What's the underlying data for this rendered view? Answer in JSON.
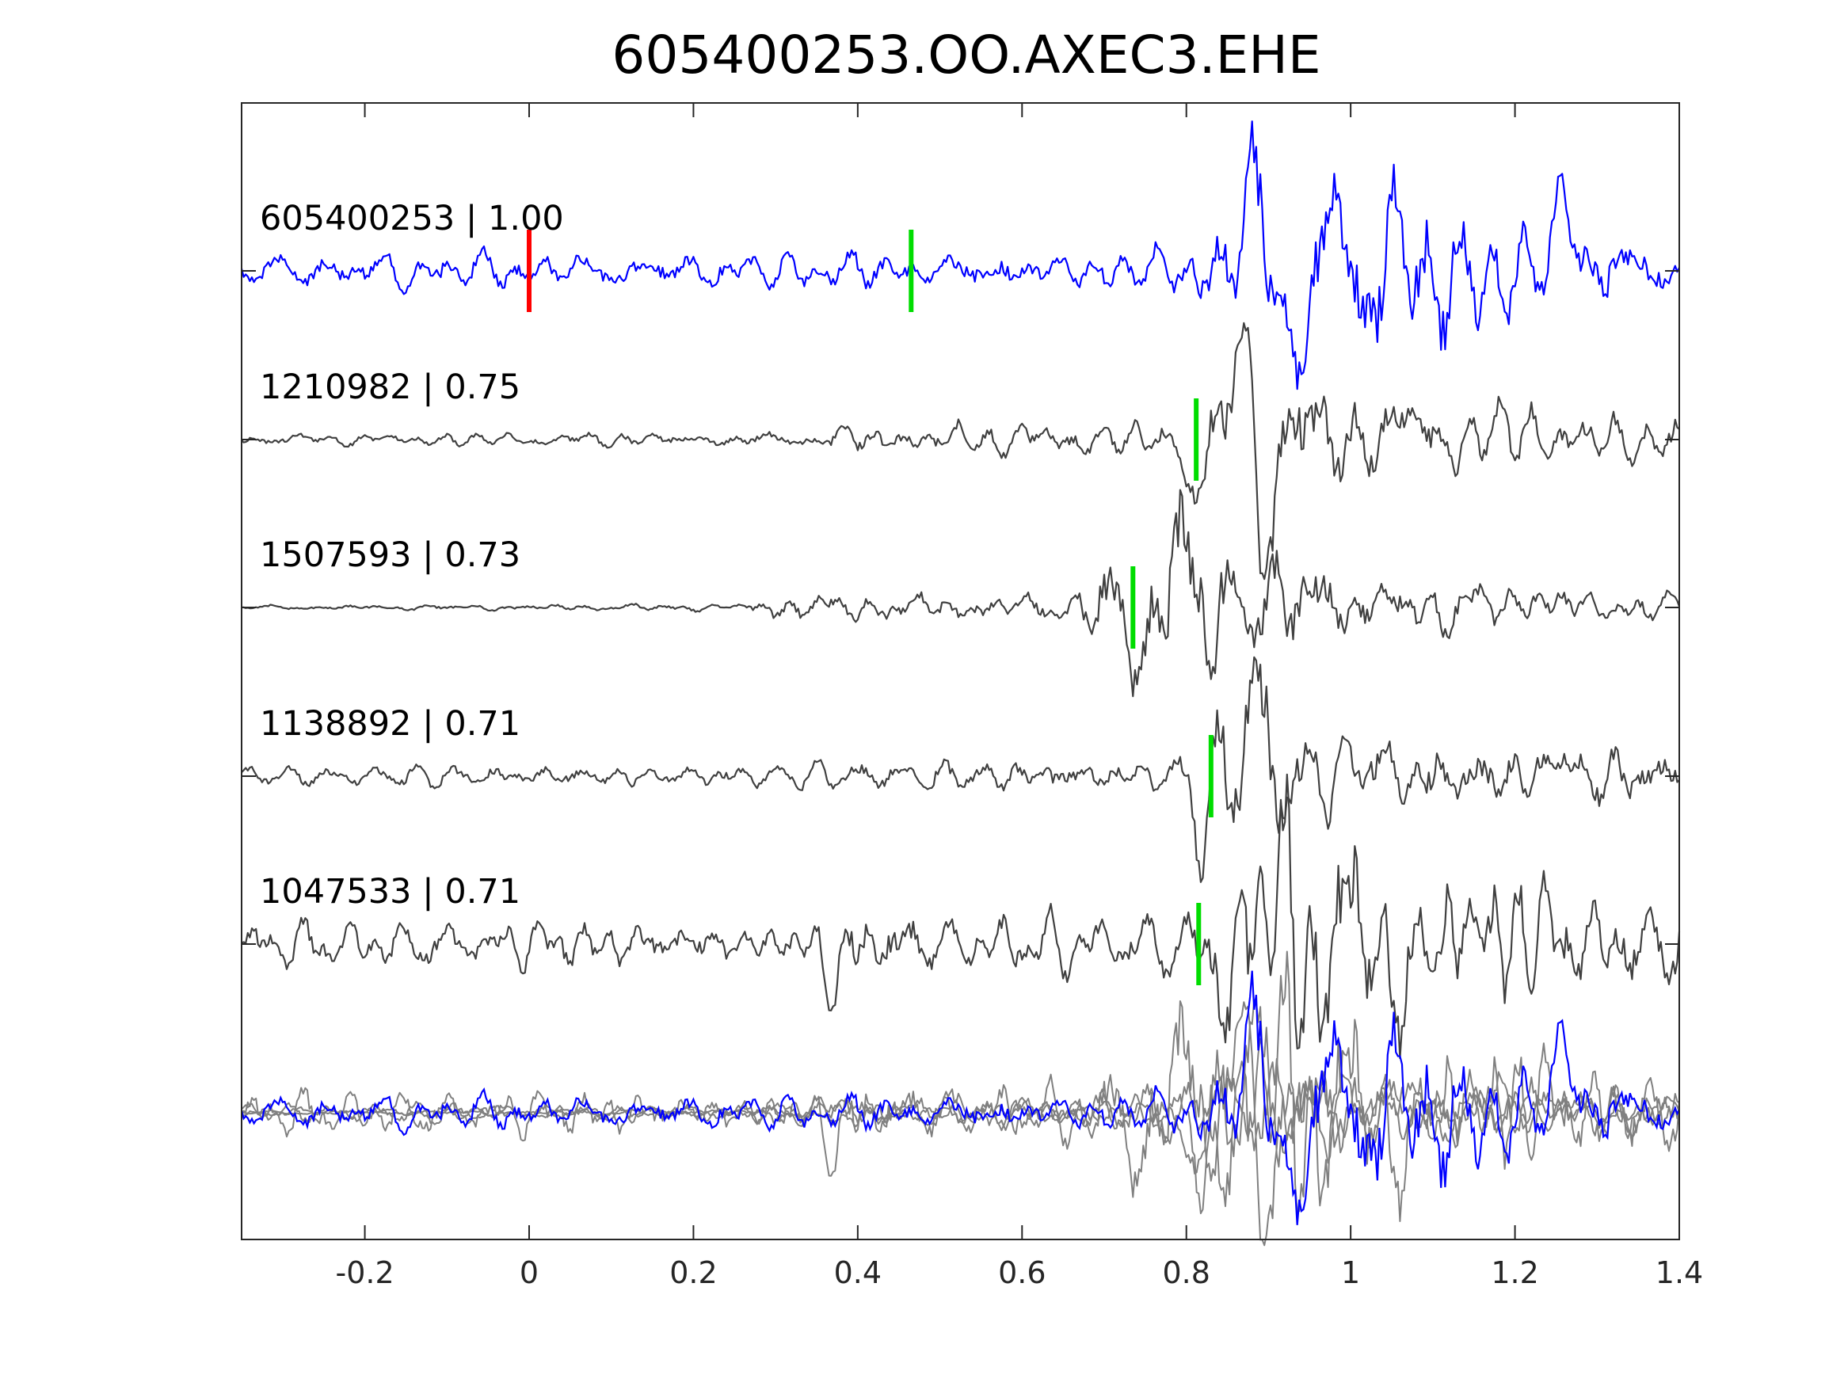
{
  "chart_data": {
    "type": "line",
    "title": "605400253.OO.AXEC3.EHE",
    "xlabel": "",
    "ylabel": "",
    "xlim": [
      -0.35,
      1.4
    ],
    "x_ticks": [
      -0.2,
      0,
      0.2,
      0.4,
      0.6,
      0.8,
      1,
      1.2,
      1.4
    ],
    "x_tick_labels": [
      "-0.2",
      "0",
      "0.2",
      "0.4",
      "0.6",
      "0.8",
      "1",
      "1.2",
      "1.4"
    ],
    "grid": false,
    "colors": {
      "template": "#0000ff",
      "match": "#404040",
      "overlay_match": "#808080",
      "origin_marker": "#ff0000",
      "pick_marker": "#00dd00",
      "axes": "#262626"
    },
    "origin_marker_time": 0,
    "traces": [
      {
        "label": "605400253 | 1.00",
        "color": "#0000ff",
        "pick_time": 0.465,
        "envelope": [
          {
            "t": -0.35,
            "a": 0.18
          },
          {
            "t": 0.65,
            "a": 0.2
          },
          {
            "t": 0.79,
            "a": 0.25
          },
          {
            "t": 0.85,
            "a": 0.5
          },
          {
            "t": 0.88,
            "a": 0.9
          },
          {
            "t": 1.1,
            "a": 0.95
          },
          {
            "t": 1.2,
            "a": 0.55
          },
          {
            "t": 1.4,
            "a": 0.35
          }
        ],
        "peaks": [
          {
            "t": 0.88,
            "a": 1.0
          },
          {
            "t": 0.94,
            "a": -1.1
          },
          {
            "t": 0.98,
            "a": 0.95
          },
          {
            "t": 1.02,
            "a": -0.85
          },
          {
            "t": 1.05,
            "a": 1.0
          },
          {
            "t": 1.1,
            "a": -0.6
          },
          {
            "t": 1.26,
            "a": 1.0
          }
        ]
      },
      {
        "label": "1210982 | 0.75",
        "color": "#404040",
        "pick_time": 0.812,
        "envelope": [
          {
            "t": -0.35,
            "a": 0.05
          },
          {
            "t": 0.35,
            "a": 0.07
          },
          {
            "t": 0.4,
            "a": 0.14
          },
          {
            "t": 0.7,
            "a": 0.13
          },
          {
            "t": 0.78,
            "a": 0.2
          },
          {
            "t": 0.83,
            "a": 0.55
          },
          {
            "t": 0.87,
            "a": 1.0
          },
          {
            "t": 0.95,
            "a": 0.6
          },
          {
            "t": 1.05,
            "a": 0.3
          },
          {
            "t": 1.4,
            "a": 0.2
          }
        ],
        "peaks": [
          {
            "t": 0.81,
            "a": -0.45
          },
          {
            "t": 0.87,
            "a": 1.0
          },
          {
            "t": 0.9,
            "a": -0.85
          },
          {
            "t": 1.06,
            "a": 0.3
          },
          {
            "t": 1.22,
            "a": 0.25
          }
        ]
      },
      {
        "label": "1507593 | 0.73",
        "color": "#404040",
        "pick_time": 0.735,
        "envelope": [
          {
            "t": -0.35,
            "a": 0.02
          },
          {
            "t": 0.25,
            "a": 0.03
          },
          {
            "t": 0.3,
            "a": 0.1
          },
          {
            "t": 0.65,
            "a": 0.13
          },
          {
            "t": 0.72,
            "a": 0.6
          },
          {
            "t": 0.8,
            "a": 1.0
          },
          {
            "t": 0.88,
            "a": 0.6
          },
          {
            "t": 1.05,
            "a": 0.25
          },
          {
            "t": 1.4,
            "a": 0.1
          }
        ],
        "peaks": [
          {
            "t": 0.73,
            "a": -0.6
          },
          {
            "t": 0.79,
            "a": 1.0
          },
          {
            "t": 0.83,
            "a": -0.5
          },
          {
            "t": 0.87,
            "a": 0.4
          },
          {
            "t": 0.98,
            "a": 0.25
          },
          {
            "t": 1.23,
            "a": 0.2
          }
        ]
      },
      {
        "label": "1138892 | 0.71",
        "color": "#404040",
        "pick_time": 0.83,
        "envelope": [
          {
            "t": -0.35,
            "a": 0.08
          },
          {
            "t": 0.3,
            "a": 0.1
          },
          {
            "t": 0.6,
            "a": 0.15
          },
          {
            "t": 0.79,
            "a": 0.2
          },
          {
            "t": 0.82,
            "a": 0.45
          },
          {
            "t": 0.88,
            "a": 1.0
          },
          {
            "t": 0.95,
            "a": 0.35
          },
          {
            "t": 1.4,
            "a": 0.25
          }
        ],
        "peaks": [
          {
            "t": 0.82,
            "a": -0.55
          },
          {
            "t": 0.88,
            "a": 1.0
          },
          {
            "t": 1.02,
            "a": 0.25
          },
          {
            "t": 1.25,
            "a": 0.3
          }
        ]
      },
      {
        "label": "1047533 | 0.71",
        "color": "#404040",
        "pick_time": 0.815,
        "envelope": [
          {
            "t": -0.35,
            "a": 0.18
          },
          {
            "t": 0.35,
            "a": 0.2
          },
          {
            "t": 0.38,
            "a": 0.35
          },
          {
            "t": 0.5,
            "a": 0.22
          },
          {
            "t": 0.8,
            "a": 0.25
          },
          {
            "t": 0.84,
            "a": 0.6
          },
          {
            "t": 0.9,
            "a": 1.0
          },
          {
            "t": 1.1,
            "a": 0.8
          },
          {
            "t": 1.25,
            "a": 0.45
          },
          {
            "t": 1.4,
            "a": 0.35
          }
        ],
        "peaks": [
          {
            "t": 0.37,
            "a": -0.4
          },
          {
            "t": 0.85,
            "a": -0.65
          },
          {
            "t": 0.9,
            "a": 1.0
          },
          {
            "t": 0.97,
            "a": -0.5
          },
          {
            "t": 1.0,
            "a": 0.8
          },
          {
            "t": 1.05,
            "a": -0.75
          },
          {
            "t": 1.15,
            "a": 0.45
          },
          {
            "t": 1.23,
            "a": 0.35
          }
        ]
      }
    ]
  }
}
